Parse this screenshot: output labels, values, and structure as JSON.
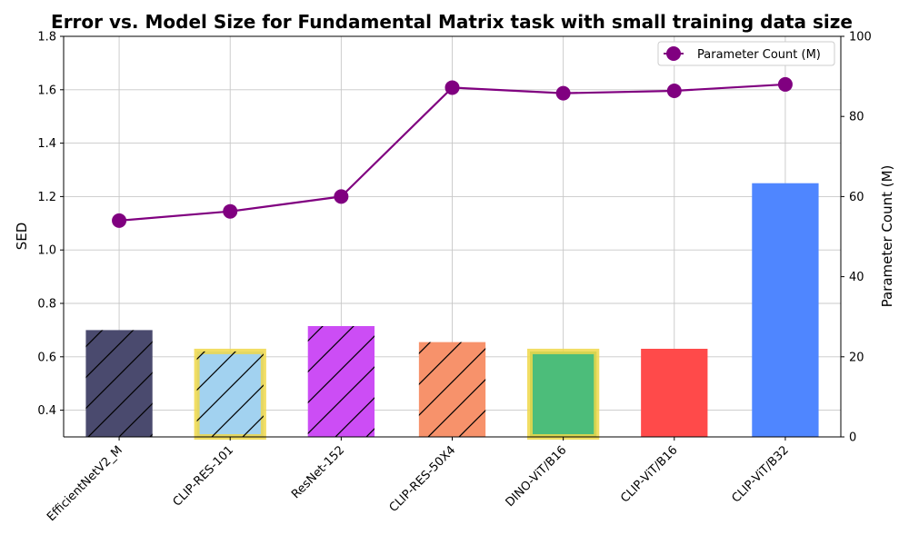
{
  "chart_data": {
    "type": "bar",
    "title": "Error vs. Model Size for Fundamental Matrix task with small training data size",
    "ylabel": "SED",
    "y2label": "Parameter Count (M)",
    "xlabel": "",
    "ylim": [
      0.3,
      1.8
    ],
    "y2lim": [
      0,
      100
    ],
    "yticks": [
      0.4,
      0.6,
      0.8,
      1.0,
      1.2,
      1.4,
      1.6,
      1.8
    ],
    "y2ticks": [
      0,
      20,
      40,
      60,
      80,
      100
    ],
    "grid": true,
    "categories": [
      "EfficientNetV2_M",
      "CLIP-RES-101",
      "ResNet-152",
      "CLIP-RES-50X4",
      "DINO-ViT/B16",
      "CLIP-ViT/B16",
      "CLIP-ViT/B32"
    ],
    "series": [
      {
        "name": "SED",
        "kind": "bar",
        "values": [
          0.7,
          0.62,
          0.715,
          0.655,
          0.62,
          0.63,
          1.25
        ],
        "colors": [
          "#4a4a6e",
          "#a2d2f0",
          "#cc4df5",
          "#f7926b",
          "#4cbd7a",
          "#ff4a4a",
          "#4f86ff"
        ],
        "hatched": [
          true,
          true,
          true,
          true,
          false,
          false,
          false
        ],
        "highlighted": [
          false,
          true,
          false,
          false,
          true,
          false,
          false
        ],
        "highlight_color": "#f0d84a"
      },
      {
        "name": "Parameter Count (M)",
        "kind": "line",
        "axis": "right",
        "color": "#800080",
        "values": [
          54,
          56.3,
          60,
          87.2,
          85.8,
          86.4,
          88
        ]
      }
    ],
    "legend": {
      "position": "top-right",
      "entries": [
        "Parameter Count (M)"
      ]
    }
  }
}
